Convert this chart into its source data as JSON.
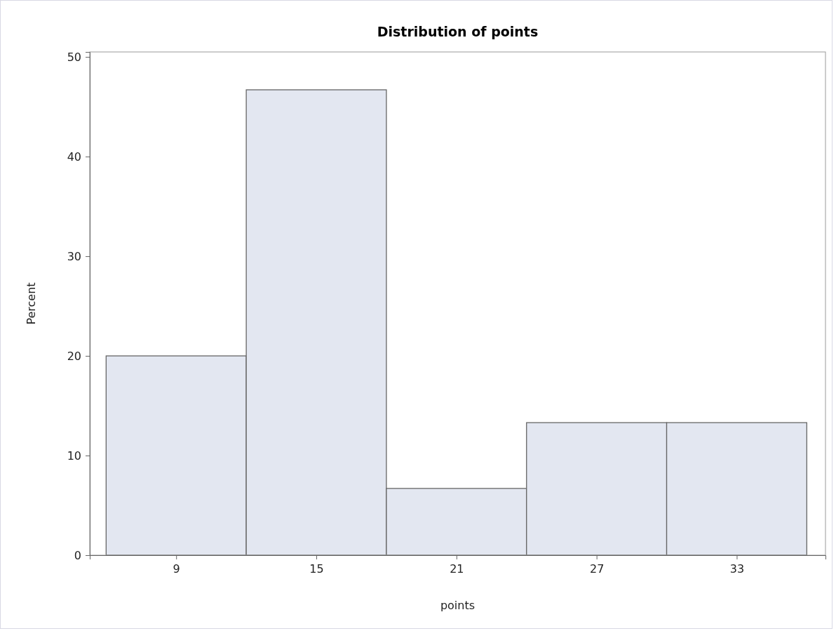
{
  "chart_data": {
    "type": "histogram",
    "title": "Distribution of points",
    "xlabel": "points",
    "ylabel": "Percent",
    "bins": [
      6,
      12,
      18,
      24,
      30,
      36
    ],
    "values": [
      20,
      46.7,
      6.7,
      13.3,
      13.3
    ],
    "color": "#e3e7f1",
    "xlim": [
      5.3,
      36.8
    ],
    "xticks": [
      9,
      15,
      21,
      27,
      33
    ],
    "ylim": [
      0,
      50.5
    ],
    "yticks": [
      0,
      10,
      20,
      30,
      40,
      50
    ],
    "grid": false
  }
}
